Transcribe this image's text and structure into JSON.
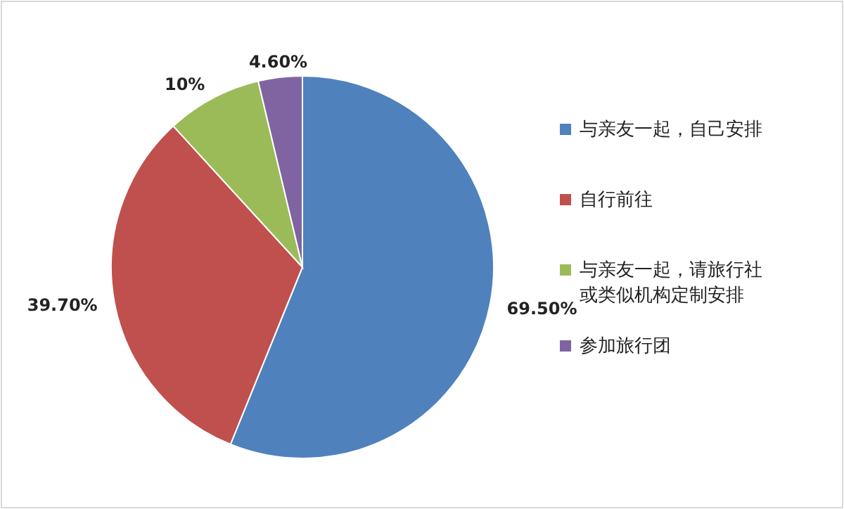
{
  "chart_data": {
    "type": "pie",
    "categories": [
      "与亲友一起，自己安排",
      "自行前往",
      "与亲友一起，请旅行社或类似机构定制安排",
      "参加旅行团"
    ],
    "values": [
      69.5,
      39.7,
      10,
      4.6
    ],
    "colors": [
      "#4f81bd",
      "#c0504d",
      "#9bbb59",
      "#8064a2"
    ],
    "value_labels": [
      "69.50%",
      "39.70%",
      "10%",
      "4.60%"
    ],
    "legend": "right"
  }
}
